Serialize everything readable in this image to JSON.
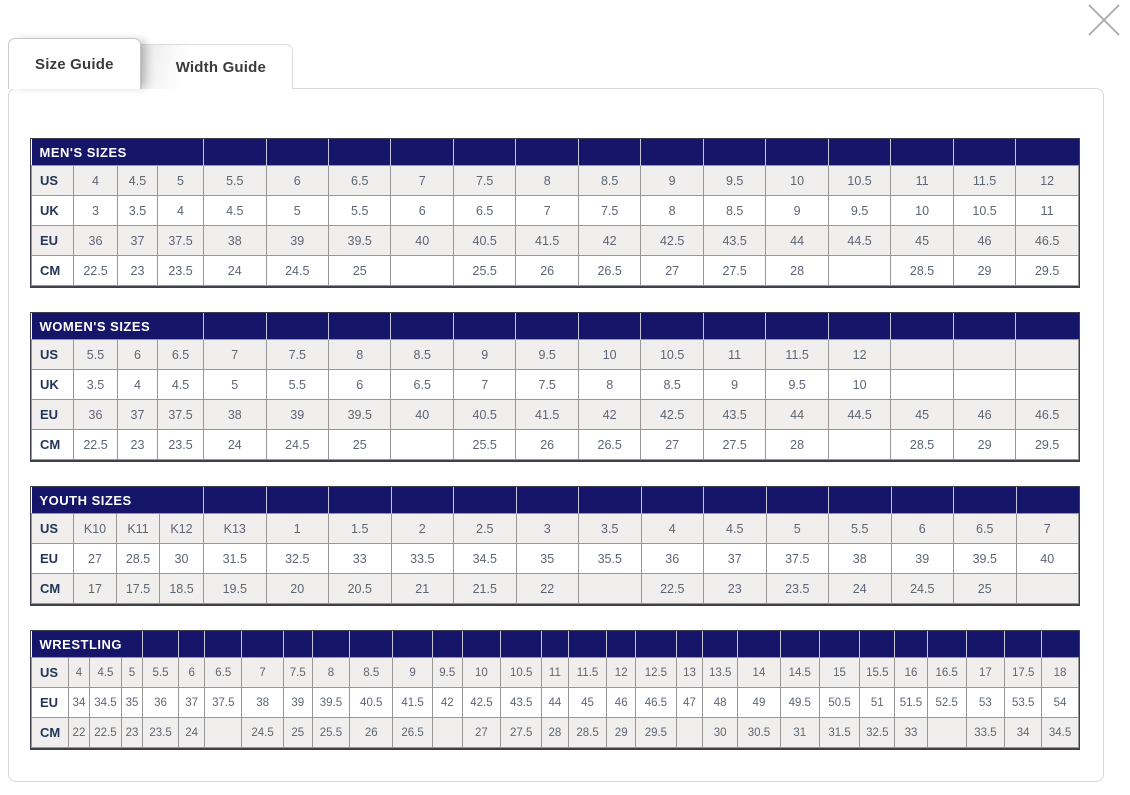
{
  "icons": {
    "close": "×"
  },
  "tabs": [
    {
      "label": "Size Guide",
      "active": true
    },
    {
      "label": "Width Guide",
      "active": false
    }
  ],
  "colors": {
    "header_navy": "#15156a",
    "row_stripe": "#f0efed",
    "cell_border": "#979797",
    "table_outline": "#40404a",
    "value_text": "#5c6674",
    "label_text": "#233659"
  },
  "tables": [
    {
      "title": "MEN'S SIZES",
      "title_colspan": 4,
      "rows": [
        {
          "label": "US",
          "values": [
            "4",
            "4.5",
            "5",
            "5.5",
            "6",
            "6.5",
            "7",
            "7.5",
            "8",
            "8.5",
            "9",
            "9.5",
            "10",
            "10.5",
            "11",
            "11.5",
            "12"
          ]
        },
        {
          "label": "UK",
          "values": [
            "3",
            "3.5",
            "4",
            "4.5",
            "5",
            "5.5",
            "6",
            "6.5",
            "7",
            "7.5",
            "8",
            "8.5",
            "9",
            "9.5",
            "10",
            "10.5",
            "11"
          ]
        },
        {
          "label": "EU",
          "values": [
            "36",
            "37",
            "37.5",
            "38",
            "39",
            "39.5",
            "40",
            "40.5",
            "41.5",
            "42",
            "42.5",
            "43.5",
            "44",
            "44.5",
            "45",
            "46",
            "46.5"
          ]
        },
        {
          "label": "CM",
          "values": [
            "22.5",
            "23",
            "23.5",
            "24",
            "24.5",
            "25",
            "",
            "25.5",
            "26",
            "26.5",
            "27",
            "27.5",
            "28",
            "",
            "28.5",
            "29",
            "29.5"
          ]
        }
      ]
    },
    {
      "title": "WOMEN'S SIZES",
      "title_colspan": 4,
      "rows": [
        {
          "label": "US",
          "values": [
            "5.5",
            "6",
            "6.5",
            "7",
            "7.5",
            "8",
            "8.5",
            "9",
            "9.5",
            "10",
            "10.5",
            "11",
            "11.5",
            "12",
            "",
            "",
            ""
          ]
        },
        {
          "label": "UK",
          "values": [
            "3.5",
            "4",
            "4.5",
            "5",
            "5.5",
            "6",
            "6.5",
            "7",
            "7.5",
            "8",
            "8.5",
            "9",
            "9.5",
            "10",
            "",
            "",
            ""
          ]
        },
        {
          "label": "EU",
          "values": [
            "36",
            "37",
            "37.5",
            "38",
            "39",
            "39.5",
            "40",
            "40.5",
            "41.5",
            "42",
            "42.5",
            "43.5",
            "44",
            "44.5",
            "45",
            "46",
            "46.5"
          ]
        },
        {
          "label": "CM",
          "values": [
            "22.5",
            "23",
            "23.5",
            "24",
            "24.5",
            "25",
            "",
            "25.5",
            "26",
            "26.5",
            "27",
            "27.5",
            "28",
            "",
            "28.5",
            "29",
            "29.5"
          ]
        }
      ]
    },
    {
      "title": "YOUTH SIZES",
      "title_colspan": 4,
      "rows": [
        {
          "label": "US",
          "values": [
            "K10",
            "K11",
            "K12",
            "K13",
            "1",
            "1.5",
            "2",
            "2.5",
            "3",
            "3.5",
            "4",
            "4.5",
            "5",
            "5.5",
            "6",
            "6.5",
            "7"
          ]
        },
        {
          "label": "EU",
          "values": [
            "27",
            "28.5",
            "30",
            "31.5",
            "32.5",
            "33",
            "33.5",
            "34.5",
            "35",
            "35.5",
            "36",
            "37",
            "37.5",
            "38",
            "39",
            "39.5",
            "40"
          ]
        },
        {
          "label": "CM",
          "values": [
            "17",
            "17.5",
            "18.5",
            "19.5",
            "20",
            "20.5",
            "21",
            "21.5",
            "22",
            "",
            "22.5",
            "23",
            "23.5",
            "24",
            "24.5",
            "25",
            ""
          ]
        }
      ]
    },
    {
      "title": "WRESTLING",
      "title_colspan": 4,
      "rows": [
        {
          "label": "US",
          "values": [
            "4",
            "4.5",
            "5",
            "5.5",
            "6",
            "6.5",
            "7",
            "7.5",
            "8",
            "8.5",
            "9",
            "9.5",
            "10",
            "10.5",
            "11",
            "11.5",
            "12",
            "12.5",
            "13",
            "13.5",
            "14",
            "14.5",
            "15",
            "15.5",
            "16",
            "16.5",
            "17",
            "17.5",
            "18"
          ]
        },
        {
          "label": "EU",
          "values": [
            "34",
            "34.5",
            "35",
            "36",
            "37",
            "37.5",
            "38",
            "39",
            "39.5",
            "40.5",
            "41.5",
            "42",
            "42.5",
            "43.5",
            "44",
            "45",
            "46",
            "46.5",
            "47",
            "48",
            "49",
            "49.5",
            "50.5",
            "51",
            "51.5",
            "52.5",
            "53",
            "53.5",
            "54"
          ]
        },
        {
          "label": "CM",
          "values": [
            "22",
            "22.5",
            "23",
            "23.5",
            "24",
            "",
            "24.5",
            "25",
            "25.5",
            "26",
            "26.5",
            "",
            "27",
            "27.5",
            "28",
            "28.5",
            "29",
            "29.5",
            "",
            "30",
            "30.5",
            "31",
            "31.5",
            "32.5",
            "33",
            "",
            "33.5",
            "34",
            "34.5"
          ]
        }
      ]
    }
  ]
}
